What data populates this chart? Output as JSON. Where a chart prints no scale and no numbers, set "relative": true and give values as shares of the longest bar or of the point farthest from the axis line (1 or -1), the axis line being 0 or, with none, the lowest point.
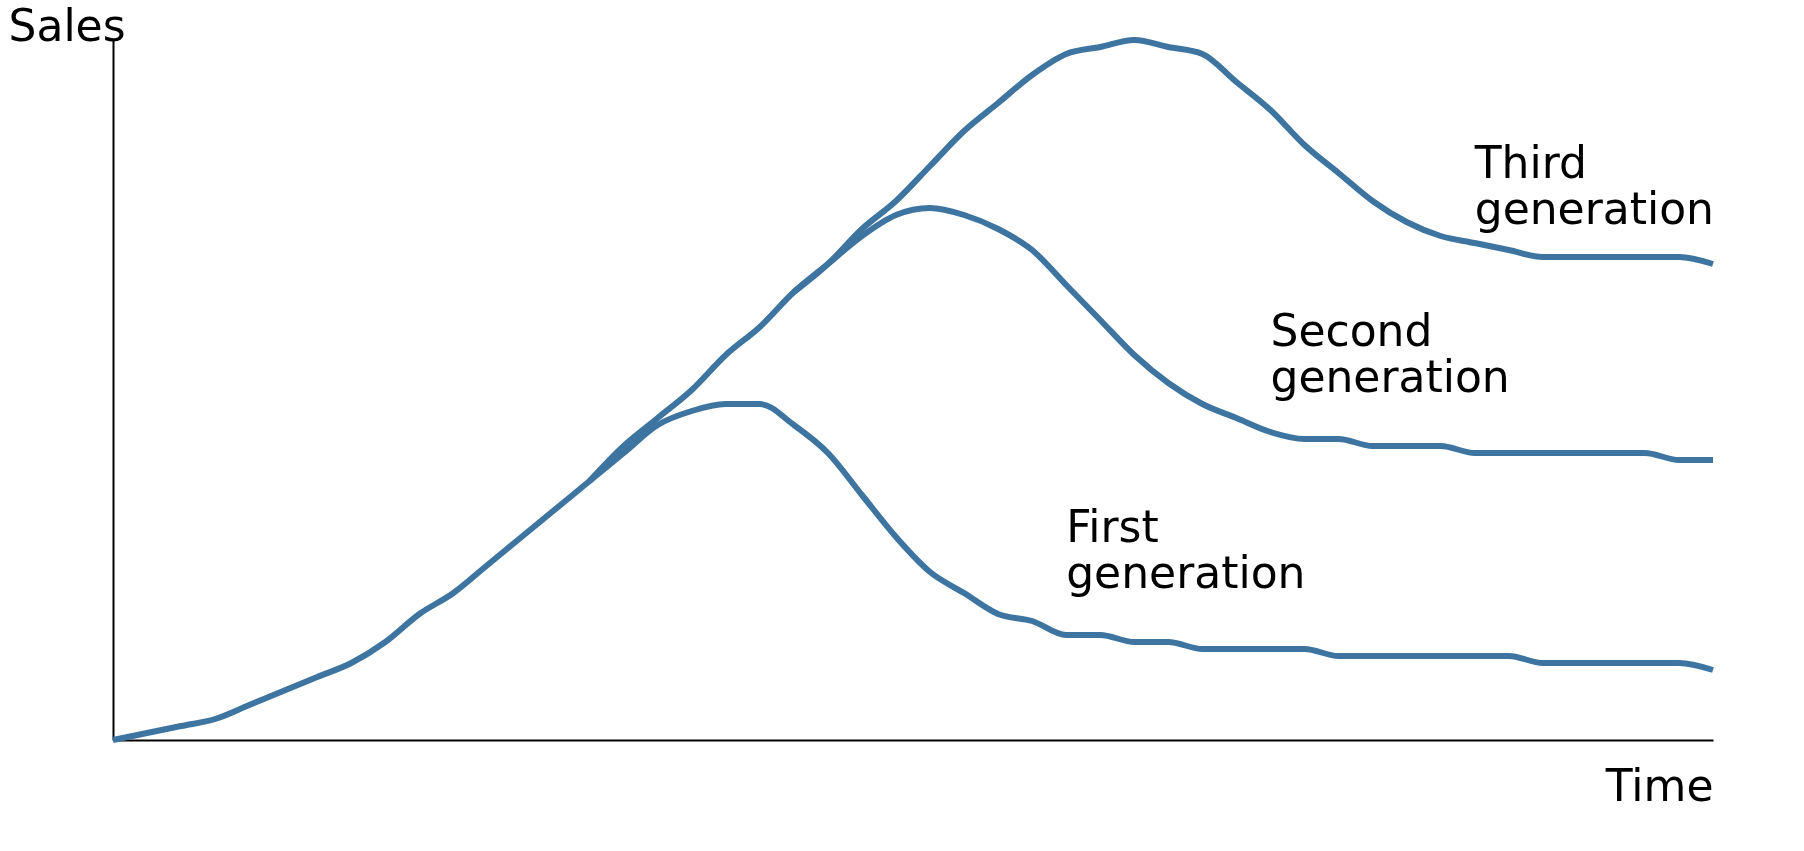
{
  "chart_data": {
    "type": "line",
    "relative": true,
    "xlabel": "Time",
    "ylabel": "Sales",
    "line_style": "solid",
    "categories": [
      null,
      null,
      null,
      null,
      null,
      null,
      null,
      null,
      null,
      null,
      null,
      null,
      null,
      null,
      null,
      null,
      null,
      null,
      null,
      null,
      null,
      null,
      null,
      null,
      null,
      null,
      null,
      null,
      null,
      null,
      null,
      null,
      null,
      null,
      null,
      null,
      null,
      null,
      null,
      null,
      null,
      null,
      null,
      null,
      null,
      null,
      null,
      null
    ],
    "series": [
      {
        "name": "First generation",
        "color": "#3e74a0",
        "values": [
          0,
          0.01,
          0.02,
          0.03,
          0.05,
          0.07,
          0.09,
          0.11,
          0.14,
          0.18,
          0.21,
          0.25,
          0.29,
          0.33,
          0.37,
          0.41,
          0.45,
          0.47,
          0.48,
          0.48,
          0.45,
          0.41,
          0.35,
          0.29,
          0.24,
          0.21,
          0.18,
          0.17,
          0.15,
          0.15,
          0.14,
          0.14,
          0.13,
          0.13,
          0.13,
          0.13,
          0.12,
          0.12,
          0.12,
          0.12,
          0.12,
          0.12,
          0.11,
          0.11,
          0.11,
          0.11,
          0.11,
          0.1
        ]
      },
      {
        "name": "Second generation",
        "color": "#3e74a0",
        "values": [
          null,
          null,
          null,
          null,
          null,
          null,
          null,
          null,
          null,
          null,
          null,
          null,
          null,
          null,
          0.37,
          0.42,
          0.46,
          0.5,
          0.55,
          0.59,
          0.64,
          0.68,
          0.72,
          0.75,
          0.76,
          0.75,
          0.73,
          0.7,
          0.65,
          0.6,
          0.55,
          0.51,
          0.48,
          0.46,
          0.44,
          0.43,
          0.43,
          0.42,
          0.42,
          0.42,
          0.41,
          0.41,
          0.41,
          0.41,
          0.41,
          0.41,
          0.4,
          0.4
        ]
      },
      {
        "name": "Third generation",
        "color": "#3e74a0",
        "values": [
          null,
          null,
          null,
          null,
          null,
          null,
          null,
          null,
          null,
          null,
          null,
          null,
          null,
          null,
          null,
          null,
          null,
          null,
          null,
          null,
          0.64,
          0.68,
          0.73,
          0.77,
          0.82,
          0.87,
          0.91,
          0.95,
          0.98,
          0.99,
          1,
          0.99,
          0.98,
          0.94,
          0.9,
          0.85,
          0.81,
          0.77,
          0.74,
          0.72,
          0.71,
          0.7,
          0.69,
          0.69,
          0.69,
          0.69,
          0.69,
          0.68
        ]
      }
    ]
  }
}
